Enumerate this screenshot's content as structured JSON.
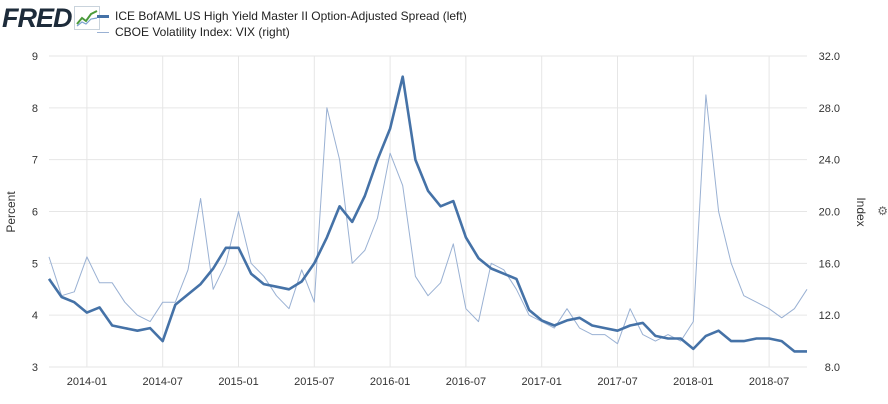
{
  "header": {
    "logo_text": "FRED",
    "legend": [
      {
        "label": "ICE BofAML US High Yield Master II Option-Adjusted Spread (left)",
        "style": "thick"
      },
      {
        "label": "CBOE Volatility Index: VIX (right)",
        "style": "thin"
      }
    ]
  },
  "colors": {
    "series_left": "#4572a7",
    "series_right": "#9ab1d3",
    "plot_bg": "#ffffff",
    "page_bg": "#ffffff",
    "grid": "#e6e6e6"
  },
  "chart_data": {
    "type": "line",
    "left_axis": {
      "label": "Percent",
      "ticks": [
        "3",
        "4",
        "5",
        "6",
        "7",
        "8",
        "9"
      ],
      "range": [
        3,
        9
      ]
    },
    "right_axis": {
      "label": "Index",
      "ticks": [
        "8.0",
        "12.0",
        "16.0",
        "20.0",
        "24.0",
        "28.0",
        "32.0"
      ],
      "range": [
        8,
        32
      ]
    },
    "x_ticks": [
      "2014-01",
      "2014-07",
      "2015-01",
      "2015-07",
      "2016-01",
      "2016-07",
      "2017-01",
      "2017-07",
      "2018-01",
      "2018-07"
    ],
    "x_range": [
      "2013-10",
      "2018-10"
    ],
    "grid": true,
    "legend_position": "top-left",
    "series": [
      {
        "name": "ICE BofAML US High Yield Master II Option-Adjusted Spread (left)",
        "axis": "left",
        "x": [
          "2013-10",
          "2013-11",
          "2013-12",
          "2014-01",
          "2014-02",
          "2014-03",
          "2014-04",
          "2014-05",
          "2014-06",
          "2014-07",
          "2014-08",
          "2014-09",
          "2014-10",
          "2014-11",
          "2014-12",
          "2015-01",
          "2015-02",
          "2015-03",
          "2015-04",
          "2015-05",
          "2015-06",
          "2015-07",
          "2015-08",
          "2015-09",
          "2015-10",
          "2015-11",
          "2015-12",
          "2016-01",
          "2016-02",
          "2016-03",
          "2016-04",
          "2016-05",
          "2016-06",
          "2016-07",
          "2016-08",
          "2016-09",
          "2016-10",
          "2016-11",
          "2016-12",
          "2017-01",
          "2017-02",
          "2017-03",
          "2017-04",
          "2017-05",
          "2017-06",
          "2017-07",
          "2017-08",
          "2017-09",
          "2017-10",
          "2017-11",
          "2017-12",
          "2018-01",
          "2018-02",
          "2018-03",
          "2018-04",
          "2018-05",
          "2018-06",
          "2018-07",
          "2018-08",
          "2018-09",
          "2018-10"
        ],
        "values": [
          4.7,
          4.35,
          4.25,
          4.05,
          4.15,
          3.8,
          3.75,
          3.7,
          3.75,
          3.5,
          4.2,
          4.4,
          4.6,
          4.9,
          5.3,
          5.3,
          4.8,
          4.6,
          4.55,
          4.5,
          4.65,
          5.0,
          5.5,
          6.1,
          5.8,
          6.3,
          7.0,
          7.6,
          8.6,
          7.0,
          6.4,
          6.1,
          6.2,
          5.5,
          5.1,
          4.9,
          4.8,
          4.7,
          4.1,
          3.9,
          3.8,
          3.9,
          3.95,
          3.8,
          3.75,
          3.7,
          3.8,
          3.85,
          3.6,
          3.55,
          3.55,
          3.35,
          3.6,
          3.7,
          3.5,
          3.5,
          3.55,
          3.55,
          3.5,
          3.3,
          3.3
        ]
      },
      {
        "name": "CBOE Volatility Index: VIX (right)",
        "axis": "right",
        "x": [
          "2013-10",
          "2013-11",
          "2013-12",
          "2014-01",
          "2014-02",
          "2014-03",
          "2014-04",
          "2014-05",
          "2014-06",
          "2014-07",
          "2014-08",
          "2014-09",
          "2014-10",
          "2014-11",
          "2014-12",
          "2015-01",
          "2015-02",
          "2015-03",
          "2015-04",
          "2015-05",
          "2015-06",
          "2015-07",
          "2015-08",
          "2015-09",
          "2015-10",
          "2015-11",
          "2015-12",
          "2016-01",
          "2016-02",
          "2016-03",
          "2016-04",
          "2016-05",
          "2016-06",
          "2016-07",
          "2016-08",
          "2016-09",
          "2016-10",
          "2016-11",
          "2016-12",
          "2017-01",
          "2017-02",
          "2017-03",
          "2017-04",
          "2017-05",
          "2017-06",
          "2017-07",
          "2017-08",
          "2017-09",
          "2017-10",
          "2017-11",
          "2017-12",
          "2018-01",
          "2018-02",
          "2018-03",
          "2018-04",
          "2018-05",
          "2018-06",
          "2018-07",
          "2018-08",
          "2018-09",
          "2018-10"
        ],
        "values": [
          16.5,
          13.5,
          13.8,
          16.5,
          14.5,
          14.5,
          13.0,
          12.0,
          11.5,
          13.0,
          13.0,
          15.5,
          21.0,
          14.0,
          16.0,
          20.0,
          16.0,
          15.0,
          13.5,
          12.5,
          15.5,
          13.0,
          28.0,
          24.0,
          16.0,
          17.0,
          19.5,
          24.5,
          22.0,
          15.0,
          13.5,
          14.5,
          17.5,
          12.5,
          11.5,
          16.0,
          15.5,
          14.0,
          12.0,
          11.5,
          11.0,
          12.5,
          11.0,
          10.5,
          10.5,
          9.8,
          12.5,
          10.5,
          10.0,
          10.5,
          10.0,
          11.5,
          29.0,
          20.0,
          16.0,
          13.5,
          13.0,
          12.5,
          11.8,
          12.5,
          14.0
        ]
      }
    ]
  }
}
